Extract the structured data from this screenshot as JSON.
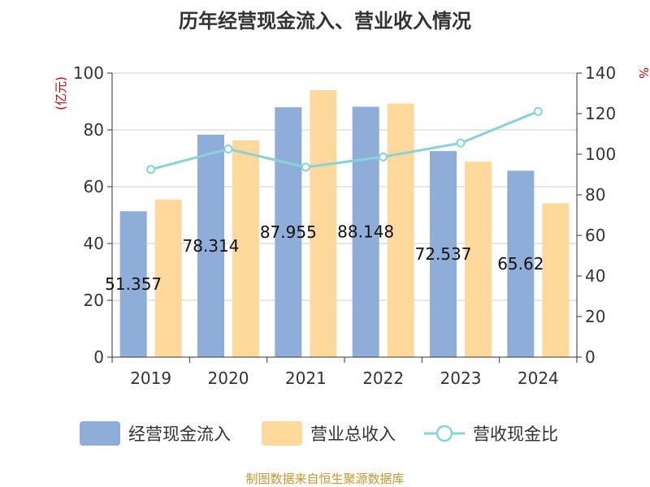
{
  "chart_data": {
    "type": "bar",
    "title": "历年经营现金流入、营业收入情况",
    "categories": [
      "2019",
      "2020",
      "2021",
      "2022",
      "2023",
      "2024"
    ],
    "left_axis": {
      "unit": "(亿元)",
      "range": [
        0,
        100
      ],
      "ticks": [
        0,
        20,
        40,
        60,
        80,
        100
      ]
    },
    "right_axis": {
      "unit": "%",
      "range": [
        0,
        140
      ],
      "ticks": [
        0,
        20,
        40,
        60,
        80,
        100,
        120,
        140
      ]
    },
    "series": [
      {
        "name": "经营现金流入",
        "type": "bar",
        "axis": "left",
        "color": "#8eadd9",
        "values": [
          51.357,
          78.314,
          87.955,
          88.148,
          72.537,
          65.62
        ],
        "data_labels": [
          "51.357",
          "78.314",
          "87.955",
          "88.148",
          "72.537",
          "65.62"
        ]
      },
      {
        "name": "营业总收入",
        "type": "bar",
        "axis": "left",
        "color": "#ffd89b",
        "values": [
          55.5,
          76.3,
          94.0,
          89.3,
          68.8,
          54.2
        ]
      },
      {
        "name": "营收现金比",
        "type": "line",
        "axis": "right",
        "color": "#86d3d9",
        "values": [
          92.5,
          102.6,
          93.6,
          98.7,
          105.5,
          121.1
        ]
      }
    ],
    "grid": true,
    "legend_position": "bottom"
  },
  "source": "制图数据来自恒生聚源数据库"
}
